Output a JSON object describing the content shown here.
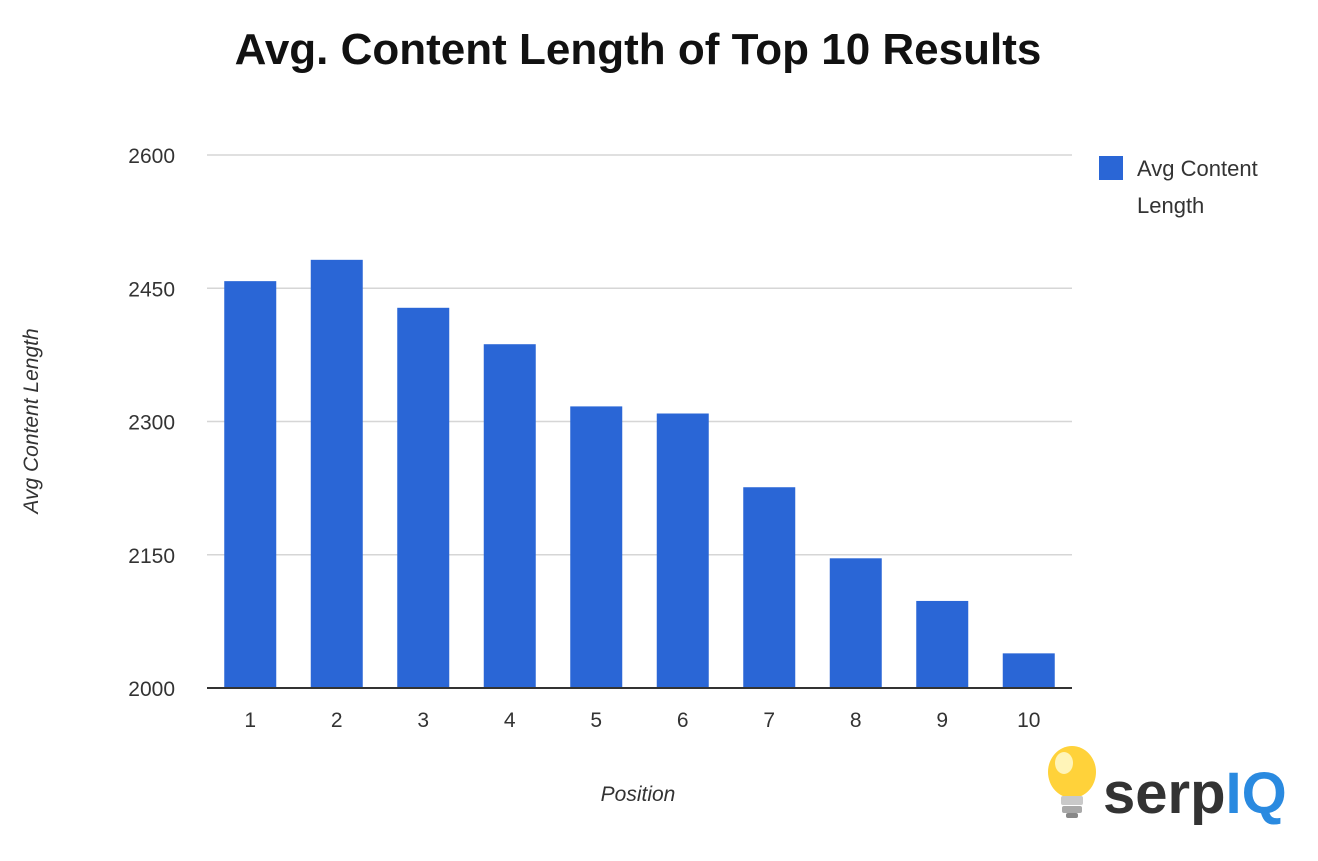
{
  "chart_data": {
    "type": "bar",
    "title": "Avg. Content Length of Top 10 Results",
    "xlabel": "Position",
    "ylabel": "Avg Content Length",
    "categories": [
      "1",
      "2",
      "3",
      "4",
      "5",
      "6",
      "7",
      "8",
      "9",
      "10"
    ],
    "series": [
      {
        "name": "Avg Content Length",
        "values": [
          2458,
          2482,
          2428,
          2387,
          2317,
          2309,
          2226,
          2146,
          2098,
          2039
        ]
      }
    ],
    "ylim": [
      2000,
      2600
    ],
    "yticks": [
      2000,
      2150,
      2300,
      2450,
      2600
    ],
    "grid": true,
    "legend_position": "top-right",
    "bar_color": "#2a66d6"
  },
  "legend": {
    "line1": "Avg Content",
    "line2": "Length"
  },
  "branding": {
    "logo_part1": "serp",
    "logo_part2": "IQ",
    "logo_color_dark": "#333333",
    "logo_color_accent": "#2a8ae0",
    "bulb_icon": "lightbulb-icon"
  }
}
